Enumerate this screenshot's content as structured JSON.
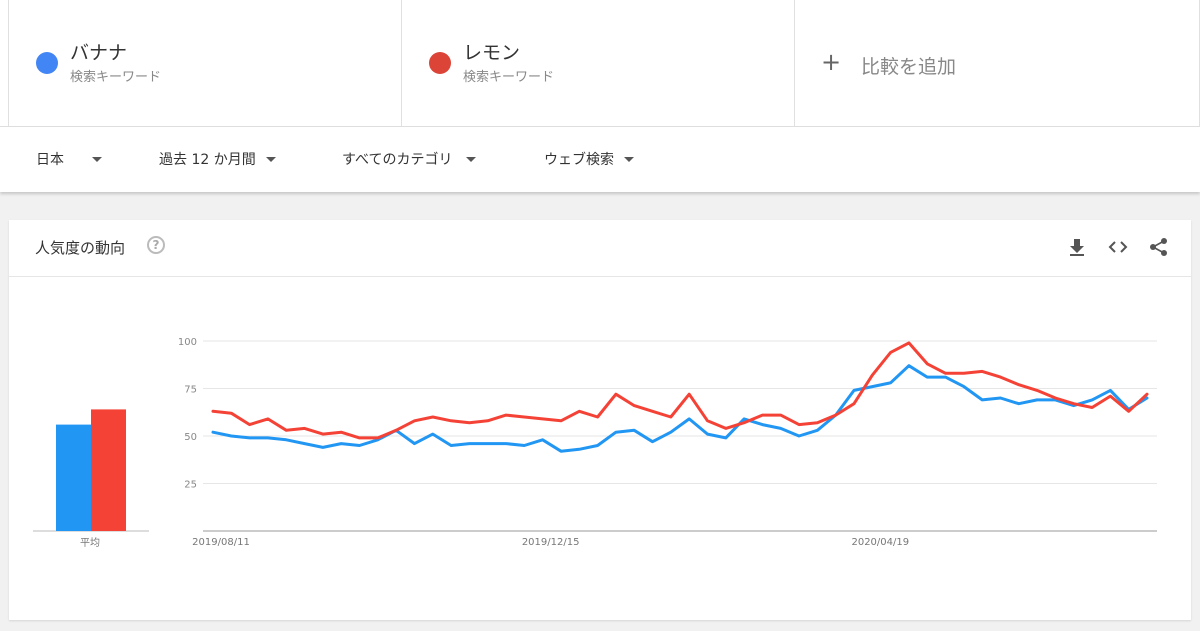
{
  "terms": [
    {
      "name": "バナナ",
      "sub": "検索キーワード",
      "color": "#4285f4"
    },
    {
      "name": "レモン",
      "sub": "検索キーワード",
      "color": "#db4437"
    }
  ],
  "add_term": {
    "plus": "+",
    "label": "比較を追加"
  },
  "filters": {
    "region": "日本",
    "period": "過去 12 か月間",
    "category": "すべてのカテゴリ",
    "search_type": "ウェブ検索"
  },
  "card": {
    "title": "人気度の動向",
    "help_glyph": "?",
    "icons": [
      "download-icon",
      "embed-icon",
      "share-icon"
    ]
  },
  "colors": {
    "banana": "#2196f3",
    "lemon": "#f44336"
  },
  "chart_data": {
    "type": "line",
    "title": "",
    "xlabel": "",
    "ylabel": "",
    "ylim": [
      0,
      100
    ],
    "yticks": [
      25,
      50,
      75,
      100
    ],
    "xtick_labels": [
      "2019/08/11",
      "2019/12/15",
      "2020/04/19"
    ],
    "xtick_indices": [
      0,
      18,
      36
    ],
    "grid": true,
    "average": {
      "label": "平均",
      "values": [
        56,
        64
      ]
    },
    "series": [
      {
        "name": "バナナ",
        "color": "#2196f3",
        "values": [
          52,
          50,
          49,
          49,
          48,
          46,
          44,
          46,
          45,
          48,
          53,
          46,
          51,
          45,
          46,
          46,
          46,
          45,
          48,
          42,
          43,
          45,
          52,
          53,
          47,
          52,
          59,
          51,
          49,
          59,
          56,
          54,
          50,
          53,
          61,
          74,
          76,
          78,
          87,
          81,
          81,
          76,
          69,
          70,
          67,
          69,
          69,
          66,
          69,
          74,
          64,
          70
        ]
      },
      {
        "name": "レモン",
        "color": "#f44336",
        "values": [
          63,
          62,
          56,
          59,
          53,
          54,
          51,
          52,
          49,
          49,
          53,
          58,
          60,
          58,
          57,
          58,
          61,
          60,
          59,
          58,
          63,
          60,
          72,
          66,
          63,
          60,
          72,
          58,
          54,
          57,
          61,
          61,
          56,
          57,
          61,
          67,
          82,
          94,
          99,
          88,
          83,
          83,
          84,
          81,
          77,
          74,
          70,
          67,
          65,
          71,
          63,
          72
        ]
      }
    ]
  }
}
